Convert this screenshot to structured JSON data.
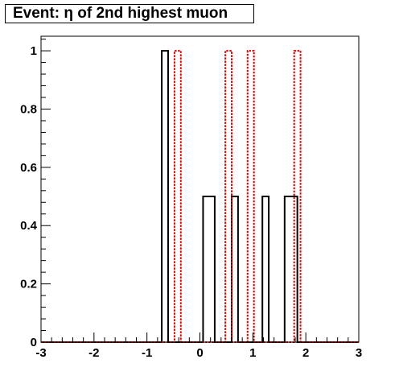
{
  "chart_data": {
    "type": "histogram",
    "title": "Event: η of 2nd highest muon",
    "xlabel": "",
    "ylabel": "",
    "xlim": [
      -3,
      3
    ],
    "ylim": [
      0,
      1.05
    ],
    "x_ticks": [
      -3,
      -2,
      -1,
      0,
      1,
      2,
      3
    ],
    "x_tick_labels": [
      "-3",
      "-2",
      "-1",
      "0",
      "1",
      "2",
      "3"
    ],
    "y_ticks": [
      0,
      0.2,
      0.4,
      0.6,
      0.8,
      1
    ],
    "y_tick_labels": [
      "0",
      "0.2",
      "0.4",
      "0.6",
      "0.8",
      "1"
    ],
    "grid": false,
    "series": [
      {
        "style": "solid",
        "color": "#000000",
        "bars": [
          {
            "x0": -0.72,
            "x1": -0.6,
            "value": 1.0
          },
          {
            "x0": 0.06,
            "x1": 0.28,
            "value": 0.5
          },
          {
            "x0": 0.6,
            "x1": 0.72,
            "value": 0.5
          },
          {
            "x0": 1.18,
            "x1": 1.3,
            "value": 0.5
          },
          {
            "x0": 1.6,
            "x1": 1.84,
            "value": 0.5
          }
        ]
      },
      {
        "style": "dotted",
        "color": "#dd0000",
        "bars": [
          {
            "x0": -0.48,
            "x1": -0.36,
            "value": 1.0
          },
          {
            "x0": 0.48,
            "x1": 0.6,
            "value": 1.0
          },
          {
            "x0": 0.9,
            "x1": 1.02,
            "value": 1.0
          },
          {
            "x0": 1.78,
            "x1": 1.9,
            "value": 1.0
          }
        ]
      }
    ]
  }
}
